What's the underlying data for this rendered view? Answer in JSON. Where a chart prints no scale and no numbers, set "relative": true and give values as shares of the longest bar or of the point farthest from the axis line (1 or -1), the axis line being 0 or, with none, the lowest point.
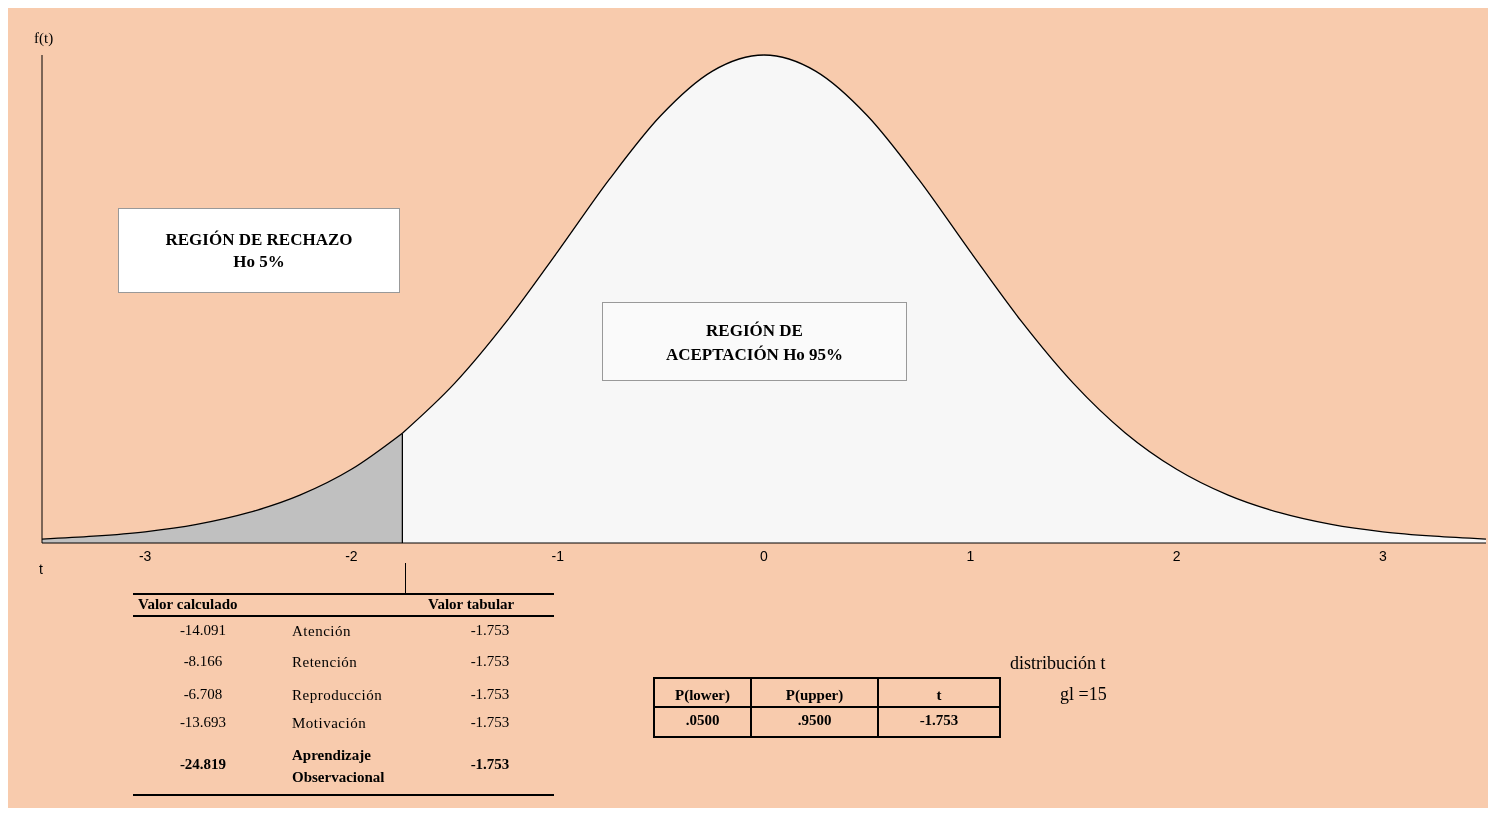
{
  "chart_data": {
    "type": "area",
    "relative": true,
    "xlabel": "t",
    "ylabel": "f(t)",
    "xlim": [
      -3.5,
      3.5
    ],
    "xticks": [
      -3,
      -2,
      -1,
      0,
      1,
      2,
      3
    ],
    "series": [
      {
        "color": "#c0c0c0",
        "x": [
          -3.5,
          -3.25,
          -3,
          -2.75,
          -2.5,
          -2.25,
          -2,
          -1.753
        ],
        "values": [
          0.008,
          0.014,
          0.023,
          0.038,
          0.062,
          0.098,
          0.151,
          0.225
        ]
      },
      {
        "color": "#f7f7f7",
        "x": [
          -1.753,
          -1.5,
          -1.25,
          -1,
          -0.75,
          -0.5,
          -0.25,
          0,
          0.25,
          0.5,
          0.75,
          1,
          1.25,
          1.5,
          1.75,
          2,
          2.25,
          2.5,
          2.75,
          3,
          3.25,
          3.5
        ],
        "values": [
          0.225,
          0.327,
          0.453,
          0.597,
          0.745,
          0.876,
          0.967,
          1,
          0.967,
          0.876,
          0.745,
          0.597,
          0.453,
          0.327,
          0.226,
          0.151,
          0.098,
          0.062,
          0.038,
          0.023,
          0.014,
          0.008
        ]
      }
    ],
    "ref_lines": [
      {
        "axis": "x",
        "value": -1.753,
        "color": "#000000"
      }
    ],
    "annotations": [
      "REGIÓN DE RECHAZO\nHo 5%",
      "REGIÓN DE\nACEPTACIÓN Ho 95%",
      "Valor calculado",
      "Valor tabular",
      "-14.091",
      "Atención",
      "-1.753",
      "-8.166",
      "Retención",
      "-1.753",
      "-6.708",
      "Reproducción",
      "-1.753",
      "-13.693",
      "Motivación",
      "-1.753",
      "-24.819",
      "Aprendizaje\nObservacional",
      "-1.753",
      "P(lower)",
      "P(upper)",
      "t",
      ".0500",
      ".9500",
      "-1.753",
      "distribución t",
      "gl =15"
    ]
  }
}
